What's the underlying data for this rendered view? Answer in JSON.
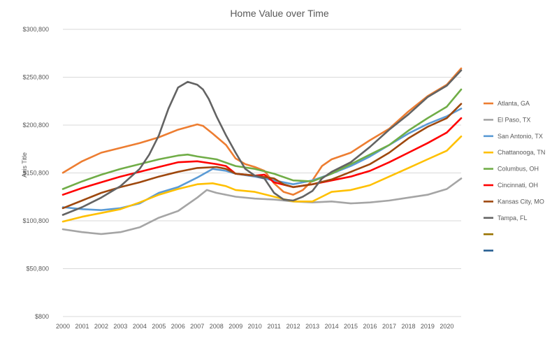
{
  "chart_data": {
    "type": "line",
    "title": "Home Value over Time",
    "ylabel": "Axis Title",
    "xlabel": "",
    "ylim": [
      800,
      300800
    ],
    "xlim": [
      2000,
      2020.75
    ],
    "yticks": [
      "$300,800",
      "$250,800",
      "$200,800",
      "$150,800",
      "$100,800",
      "$50,800",
      "$800"
    ],
    "ytick_values": [
      300800,
      250800,
      200800,
      150800,
      100800,
      50800,
      800
    ],
    "xticks": [
      "2000",
      "2001",
      "2002",
      "2003",
      "2004",
      "2005",
      "2006",
      "2007",
      "2008",
      "2009",
      "2010",
      "2011",
      "2012",
      "2013",
      "2014",
      "2015",
      "2016",
      "2017",
      "2018",
      "2019",
      "2020"
    ],
    "grid": "horizontal",
    "legend_position": "right",
    "series": [
      {
        "name": "Atlanta, GA",
        "color": "#ed7d31",
        "points": [
          [
            2000,
            151000
          ],
          [
            2001,
            163000
          ],
          [
            2002,
            172000
          ],
          [
            2003,
            177000
          ],
          [
            2004,
            182000
          ],
          [
            2005,
            188000
          ],
          [
            2006,
            196000
          ],
          [
            2007,
            201500
          ],
          [
            2007.3,
            200000
          ],
          [
            2007.8,
            192000
          ],
          [
            2008.5,
            180000
          ],
          [
            2009,
            166000
          ],
          [
            2009.5,
            160000
          ],
          [
            2010,
            157000
          ],
          [
            2010.5,
            153000
          ],
          [
            2011,
            140000
          ],
          [
            2011.5,
            131000
          ],
          [
            2012,
            128000
          ],
          [
            2012.5,
            133000
          ],
          [
            2013,
            143000
          ],
          [
            2013.5,
            158000
          ],
          [
            2014,
            165000
          ],
          [
            2015,
            172000
          ],
          [
            2016,
            185000
          ],
          [
            2017,
            197000
          ],
          [
            2018,
            215000
          ],
          [
            2019,
            231000
          ],
          [
            2020,
            243000
          ],
          [
            2020.75,
            260000
          ]
        ]
      },
      {
        "name": "El Paso, TX",
        "color": "#a5a5a5",
        "points": [
          [
            2000,
            92000
          ],
          [
            2001,
            89000
          ],
          [
            2002,
            87000
          ],
          [
            2003,
            89000
          ],
          [
            2004,
            94000
          ],
          [
            2005,
            104000
          ],
          [
            2006,
            111000
          ],
          [
            2007,
            125000
          ],
          [
            2007.5,
            133000
          ],
          [
            2008,
            130000
          ],
          [
            2009,
            126000
          ],
          [
            2010,
            124000
          ],
          [
            2011,
            123000
          ],
          [
            2012,
            121000
          ],
          [
            2013,
            120000
          ],
          [
            2014,
            121000
          ],
          [
            2015,
            119000
          ],
          [
            2016,
            120000
          ],
          [
            2017,
            122000
          ],
          [
            2018,
            125000
          ],
          [
            2019,
            128000
          ],
          [
            2020,
            134000
          ],
          [
            2020.75,
            145000
          ]
        ]
      },
      {
        "name": "San Antonio, TX",
        "color": "#5b9bd5",
        "points": [
          [
            2000,
            115000
          ],
          [
            2001,
            113000
          ],
          [
            2002,
            112000
          ],
          [
            2003,
            114000
          ],
          [
            2004,
            119000
          ],
          [
            2005,
            130000
          ],
          [
            2006,
            136000
          ],
          [
            2007,
            146000
          ],
          [
            2007.8,
            155000
          ],
          [
            2008.5,
            153000
          ],
          [
            2009,
            150000
          ],
          [
            2010,
            147000
          ],
          [
            2011,
            143000
          ],
          [
            2012,
            139000
          ],
          [
            2013,
            143000
          ],
          [
            2014,
            150000
          ],
          [
            2015,
            158000
          ],
          [
            2016,
            168000
          ],
          [
            2017,
            180000
          ],
          [
            2018,
            192000
          ],
          [
            2019,
            202000
          ],
          [
            2020,
            210000
          ],
          [
            2020.75,
            218000
          ]
        ]
      },
      {
        "name": "Chattanooga, TN",
        "color": "#ffc000",
        "points": [
          [
            2000,
            100000
          ],
          [
            2001,
            105000
          ],
          [
            2002,
            109000
          ],
          [
            2003,
            113000
          ],
          [
            2004,
            120000
          ],
          [
            2005,
            128000
          ],
          [
            2006,
            134000
          ],
          [
            2007,
            139000
          ],
          [
            2007.8,
            140000
          ],
          [
            2008.5,
            137000
          ],
          [
            2009,
            133000
          ],
          [
            2010,
            131000
          ],
          [
            2011,
            126000
          ],
          [
            2012,
            121000
          ],
          [
            2013,
            121000
          ],
          [
            2013.5,
            126000
          ],
          [
            2014,
            131000
          ],
          [
            2015,
            133000
          ],
          [
            2016,
            138000
          ],
          [
            2017,
            147000
          ],
          [
            2018,
            156000
          ],
          [
            2019,
            165000
          ],
          [
            2020,
            174000
          ],
          [
            2020.75,
            189000
          ]
        ]
      },
      {
        "name": "Columbus, OH",
        "color": "#70ad47",
        "points": [
          [
            2000,
            134000
          ],
          [
            2001,
            142000
          ],
          [
            2002,
            149000
          ],
          [
            2003,
            155000
          ],
          [
            2004,
            160000
          ],
          [
            2005,
            165000
          ],
          [
            2006,
            169000
          ],
          [
            2006.5,
            170000
          ],
          [
            2007,
            168000
          ],
          [
            2008,
            165000
          ],
          [
            2009,
            158000
          ],
          [
            2010,
            155000
          ],
          [
            2011,
            150000
          ],
          [
            2012,
            143000
          ],
          [
            2013,
            142000
          ],
          [
            2014,
            150000
          ],
          [
            2015,
            160000
          ],
          [
            2016,
            170000
          ],
          [
            2017,
            180000
          ],
          [
            2018,
            195000
          ],
          [
            2019,
            208000
          ],
          [
            2020,
            220000
          ],
          [
            2020.75,
            238000
          ]
        ]
      },
      {
        "name": "Cincinnati, OH",
        "color": "#ff0000",
        "points": [
          [
            2000,
            128000
          ],
          [
            2001,
            135000
          ],
          [
            2002,
            141000
          ],
          [
            2003,
            147000
          ],
          [
            2004,
            152000
          ],
          [
            2005,
            157000
          ],
          [
            2006,
            162000
          ],
          [
            2007,
            163000
          ],
          [
            2008,
            160000
          ],
          [
            2008.5,
            158000
          ],
          [
            2009,
            150000
          ],
          [
            2010,
            148000
          ],
          [
            2010.5,
            149000
          ],
          [
            2011,
            141000
          ],
          [
            2012,
            136000
          ],
          [
            2013,
            139000
          ],
          [
            2014,
            143000
          ],
          [
            2015,
            147000
          ],
          [
            2016,
            153000
          ],
          [
            2017,
            162000
          ],
          [
            2018,
            172000
          ],
          [
            2019,
            182000
          ],
          [
            2020,
            193000
          ],
          [
            2020.75,
            208000
          ]
        ]
      },
      {
        "name": "Kansas City, MO",
        "color": "#9e480e",
        "points": [
          [
            2000,
            114000
          ],
          [
            2001,
            122000
          ],
          [
            2002,
            130000
          ],
          [
            2003,
            136000
          ],
          [
            2004,
            141000
          ],
          [
            2005,
            147000
          ],
          [
            2006,
            152000
          ],
          [
            2007,
            156000
          ],
          [
            2008,
            157000
          ],
          [
            2008.5,
            155000
          ],
          [
            2009,
            150000
          ],
          [
            2010,
            148000
          ],
          [
            2011,
            145000
          ],
          [
            2011.5,
            139000
          ],
          [
            2012,
            136000
          ],
          [
            2013,
            139000
          ],
          [
            2014,
            144000
          ],
          [
            2015,
            152000
          ],
          [
            2016,
            160000
          ],
          [
            2017,
            172000
          ],
          [
            2018,
            187000
          ],
          [
            2019,
            199000
          ],
          [
            2020,
            208000
          ],
          [
            2020.75,
            223000
          ]
        ]
      },
      {
        "name": "Tampa, FL",
        "color": "#636363",
        "points": [
          [
            2000,
            107000
          ],
          [
            2001,
            115000
          ],
          [
            2002,
            125000
          ],
          [
            2003,
            137000
          ],
          [
            2004,
            155000
          ],
          [
            2004.5,
            170000
          ],
          [
            2005,
            190000
          ],
          [
            2005.5,
            218000
          ],
          [
            2006,
            240000
          ],
          [
            2006.5,
            246000
          ],
          [
            2007,
            243000
          ],
          [
            2007.3,
            238000
          ],
          [
            2007.6,
            228000
          ],
          [
            2008,
            210000
          ],
          [
            2008.5,
            190000
          ],
          [
            2009,
            172000
          ],
          [
            2009.5,
            155000
          ],
          [
            2010,
            148000
          ],
          [
            2010.5,
            145000
          ],
          [
            2011,
            130000
          ],
          [
            2011.5,
            123000
          ],
          [
            2012,
            122000
          ],
          [
            2012.5,
            126000
          ],
          [
            2013,
            132000
          ],
          [
            2013.5,
            145000
          ],
          [
            2014,
            152000
          ],
          [
            2015,
            162000
          ],
          [
            2016,
            178000
          ],
          [
            2017,
            196000
          ],
          [
            2018,
            212000
          ],
          [
            2019,
            230000
          ],
          [
            2020,
            242000
          ],
          [
            2020.75,
            258000
          ]
        ]
      }
    ],
    "extra_legend_swatches": [
      "#997300",
      "#255e91"
    ]
  }
}
